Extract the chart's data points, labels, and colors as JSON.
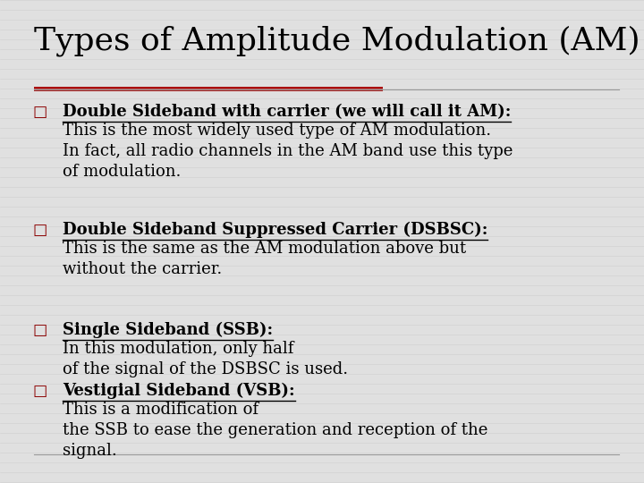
{
  "title": "Types of Amplitude Modulation (AM)",
  "title_fontsize": 26,
  "background_color": "#e0e0e0",
  "red_line_color": "#aa1111",
  "gray_line_color": "#999999",
  "bullet_color": "#8b0000",
  "body_fontsize": 13.0,
  "items": [
    {
      "bold": "Double Sideband with carrier (we will call it AM):",
      "normal": "This is the most widely used type of AM modulation.\nIn fact, all radio channels in the AM band use this type\nof modulation."
    },
    {
      "bold": "Double Sideband Suppressed Carrier (DSBSC):",
      "normal": "This is the same as the AM modulation above but\nwithout the carrier."
    },
    {
      "bold": "Single Sideband (SSB):",
      "normal": "In this modulation, only half\nof the signal of the DSBSC is used."
    },
    {
      "bold": "Vestigial Sideband (VSB):",
      "normal": "This is a modification of\nthe SSB to ease the generation and reception of the\nsignal."
    }
  ]
}
